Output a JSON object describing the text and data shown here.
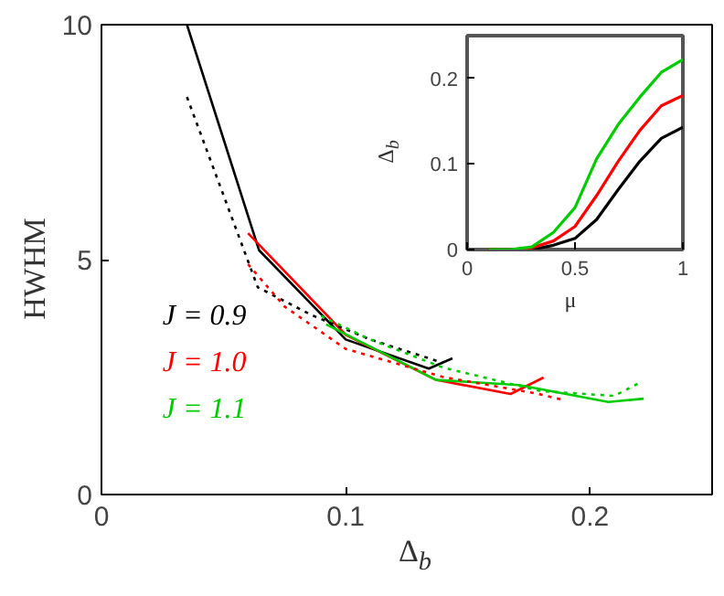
{
  "chart_data": [
    {
      "type": "line",
      "xlabel": "Δ$_{b}$",
      "ylabel": "HWHM",
      "xlim": [
        0,
        0.25
      ],
      "ylim": [
        0,
        10
      ],
      "xticks": [
        0,
        0.1,
        0.2
      ],
      "yticks": [
        0,
        5,
        10
      ],
      "grid": false,
      "legend": "left",
      "series": [
        {
          "name": "J = 0.9",
          "color": "#000000",
          "line_style": "solid",
          "x": [
            0.035,
            0.0645,
            0.1,
            0.134,
            0.1437
          ],
          "values": [
            10,
            5.2,
            3.3,
            2.68,
            2.9
          ]
        },
        {
          "name": "J = 1.0",
          "color": "#ff0000",
          "line_style": "solid",
          "x": [
            0.06,
            0.1,
            0.137,
            0.1675,
            0.181
          ],
          "values": [
            5.56,
            3.4,
            2.44,
            2.14,
            2.49
          ]
        },
        {
          "name": "J = 1.1",
          "color": "#00cc00",
          "line_style": "solid",
          "x": [
            0.092,
            0.137,
            0.171,
            0.2075,
            0.222
          ],
          "values": [
            3.62,
            2.44,
            2.33,
            1.97,
            2.04
          ]
        },
        {
          "color": "#000000",
          "line_style": "dotted",
          "x": [
            0.035,
            0.064,
            0.086,
            0.11,
            0.14
          ],
          "values": [
            8.46,
            4.41,
            3.82,
            3.3,
            2.8
          ]
        },
        {
          "color": "#ff0000",
          "line_style": "dotted",
          "x": [
            0.06,
            0.075,
            0.1,
            0.14,
            0.179,
            0.19
          ],
          "values": [
            4.9,
            4.0,
            3.1,
            2.5,
            2.14,
            2.0
          ]
        },
        {
          "color": "#00cc00",
          "line_style": "dotted",
          "x": [
            0.09,
            0.11,
            0.14,
            0.18,
            0.21,
            0.22
          ],
          "values": [
            3.8,
            3.3,
            2.7,
            2.2,
            2.1,
            2.37
          ]
        }
      ]
    },
    {
      "type": "line",
      "xlabel": "μ",
      "ylabel": "Δ$_{b}$",
      "xlim": [
        0,
        1
      ],
      "ylim": [
        0,
        0.25
      ],
      "xticks": [
        0,
        0.5,
        1
      ],
      "yticks": [
        0,
        0.1,
        0.2
      ],
      "grid": false,
      "legend": false,
      "series": [
        {
          "color": "#000000",
          "x": [
            0.1,
            0.2,
            0.3,
            0.4,
            0.5,
            0.6,
            0.7,
            0.8,
            0.9,
            1.0
          ],
          "values": [
            0,
            0,
            0,
            0.005,
            0.013,
            0.035,
            0.07,
            0.103,
            0.13,
            0.143
          ]
        },
        {
          "color": "#ff0000",
          "x": [
            0.1,
            0.2,
            0.3,
            0.4,
            0.5,
            0.6,
            0.7,
            0.8,
            0.9,
            1.0
          ],
          "values": [
            0,
            0,
            0.002,
            0.01,
            0.027,
            0.063,
            0.103,
            0.139,
            0.168,
            0.18
          ]
        },
        {
          "color": "#00cc00",
          "x": [
            0.1,
            0.2,
            0.3,
            0.4,
            0.5,
            0.6,
            0.7,
            0.8,
            0.9,
            1.0
          ],
          "values": [
            0,
            0,
            0.003,
            0.02,
            0.049,
            0.106,
            0.146,
            0.178,
            0.207,
            0.222
          ]
        }
      ]
    }
  ]
}
